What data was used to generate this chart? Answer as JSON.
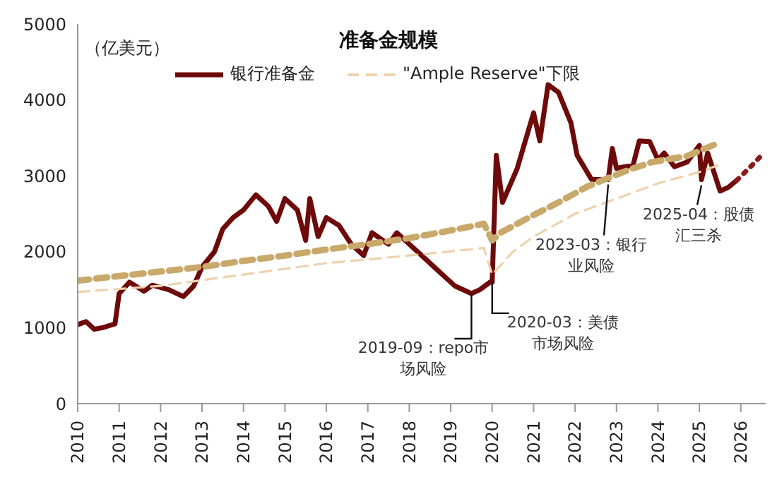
{
  "chart_data": {
    "type": "line",
    "title": "准备金规模",
    "ylabel": "（亿美元）",
    "xlim": [
      2010,
      2026.6
    ],
    "xticks": [
      2010,
      2011,
      2012,
      2013,
      2014,
      2015,
      2016,
      2017,
      2018,
      2019,
      2020,
      2021,
      2022,
      2023,
      2024,
      2025,
      2026
    ],
    "ylim": [
      0,
      5000
    ],
    "yticks": [
      0,
      1000,
      2000,
      3000,
      4000,
      5000
    ],
    "legend": "top",
    "marker": "none",
    "series": [
      {
        "name": "银行准备金",
        "color": "#6e0a0a",
        "line_style": "solid",
        "x": [
          2010,
          2010.2,
          2010.4,
          2010.6,
          2010.9,
          2011.0,
          2011.25,
          2011.6,
          2011.8,
          2012.2,
          2012.55,
          2012.8,
          2013.0,
          2013.3,
          2013.5,
          2013.75,
          2014.0,
          2014.3,
          2014.6,
          2014.8,
          2015.0,
          2015.3,
          2015.5,
          2015.6,
          2015.8,
          2016.0,
          2016.3,
          2016.6,
          2016.9,
          2017.1,
          2017.5,
          2017.7,
          2018.0,
          2018.3,
          2018.6,
          2018.9,
          2019.1,
          2019.5,
          2019.7,
          2019.95,
          2020.0,
          2020.1,
          2020.25,
          2020.6,
          2021.0,
          2021.15,
          2021.35,
          2021.6,
          2021.9,
          2022.05,
          2022.4,
          2022.8,
          2022.9,
          2023.0,
          2023.4,
          2023.55,
          2023.8,
          2024.0,
          2024.15,
          2024.4,
          2024.7,
          2025.0,
          2025.05,
          2025.2,
          2025.5,
          2025.7,
          2025.9
        ],
        "values": [
          1040,
          1080,
          980,
          1000,
          1050,
          1450,
          1600,
          1480,
          1560,
          1500,
          1410,
          1550,
          1800,
          2000,
          2300,
          2450,
          2550,
          2750,
          2600,
          2400,
          2700,
          2550,
          2150,
          2700,
          2200,
          2450,
          2350,
          2100,
          1950,
          2250,
          2100,
          2250,
          2100,
          1950,
          1800,
          1650,
          1550,
          1450,
          1500,
          1600,
          1600,
          3270,
          2650,
          3090,
          3830,
          3460,
          4200,
          4100,
          3700,
          3270,
          2950,
          2950,
          3360,
          3100,
          3140,
          3460,
          3450,
          3210,
          3300,
          3120,
          3180,
          3400,
          2950,
          3300,
          2800,
          2850,
          2940
        ]
      },
      {
        "color": "#8b1a1a",
        "line_style": "dotted",
        "x": [
          2025.9,
          2026.2,
          2026.5
        ],
        "values": [
          2940,
          3100,
          3270
        ]
      },
      {
        "color": "#c9a96b",
        "line_style": "dashed",
        "x": [
          2010,
          2011,
          2012,
          2013,
          2014,
          2015,
          2016,
          2017,
          2018,
          2019,
          2019.8,
          2020.0,
          2020.2,
          2020.95,
          2021.6,
          2022.3,
          2022.7,
          2023.3,
          2023.85,
          2024.7,
          2025.4
        ],
        "values": [
          1620,
          1680,
          1740,
          1800,
          1880,
          1950,
          2030,
          2100,
          2180,
          2280,
          2370,
          2150,
          2250,
          2470,
          2650,
          2860,
          2950,
          3080,
          3180,
          3260,
          3420
        ]
      },
      {
        "name": "\"Ample Reserve\"下限",
        "color": "#ecd2ad",
        "line_style": "dashed",
        "x": [
          2010,
          2012,
          2014,
          2016,
          2018,
          2019.8,
          2020.0,
          2020.5,
          2021.0,
          2022.0,
          2023.0,
          2024.0,
          2025.0,
          2025.5
        ],
        "values": [
          1470,
          1550,
          1700,
          1850,
          1950,
          2050,
          1700,
          2000,
          2200,
          2500,
          2700,
          2900,
          3050,
          3150
        ]
      }
    ],
    "annotations": [
      {
        "text": "2019-09：repo市场风险",
        "x": 2019.5,
        "y": 1450
      },
      {
        "text": "2020-03：美债市场风险",
        "x": 2020.0,
        "y": 1600
      },
      {
        "text": "2023-03：银行业风险",
        "x": 2022.8,
        "y": 2960
      },
      {
        "text": "2025-04：股债汇三杀",
        "x": 2025.05,
        "y": 2950
      }
    ]
  }
}
